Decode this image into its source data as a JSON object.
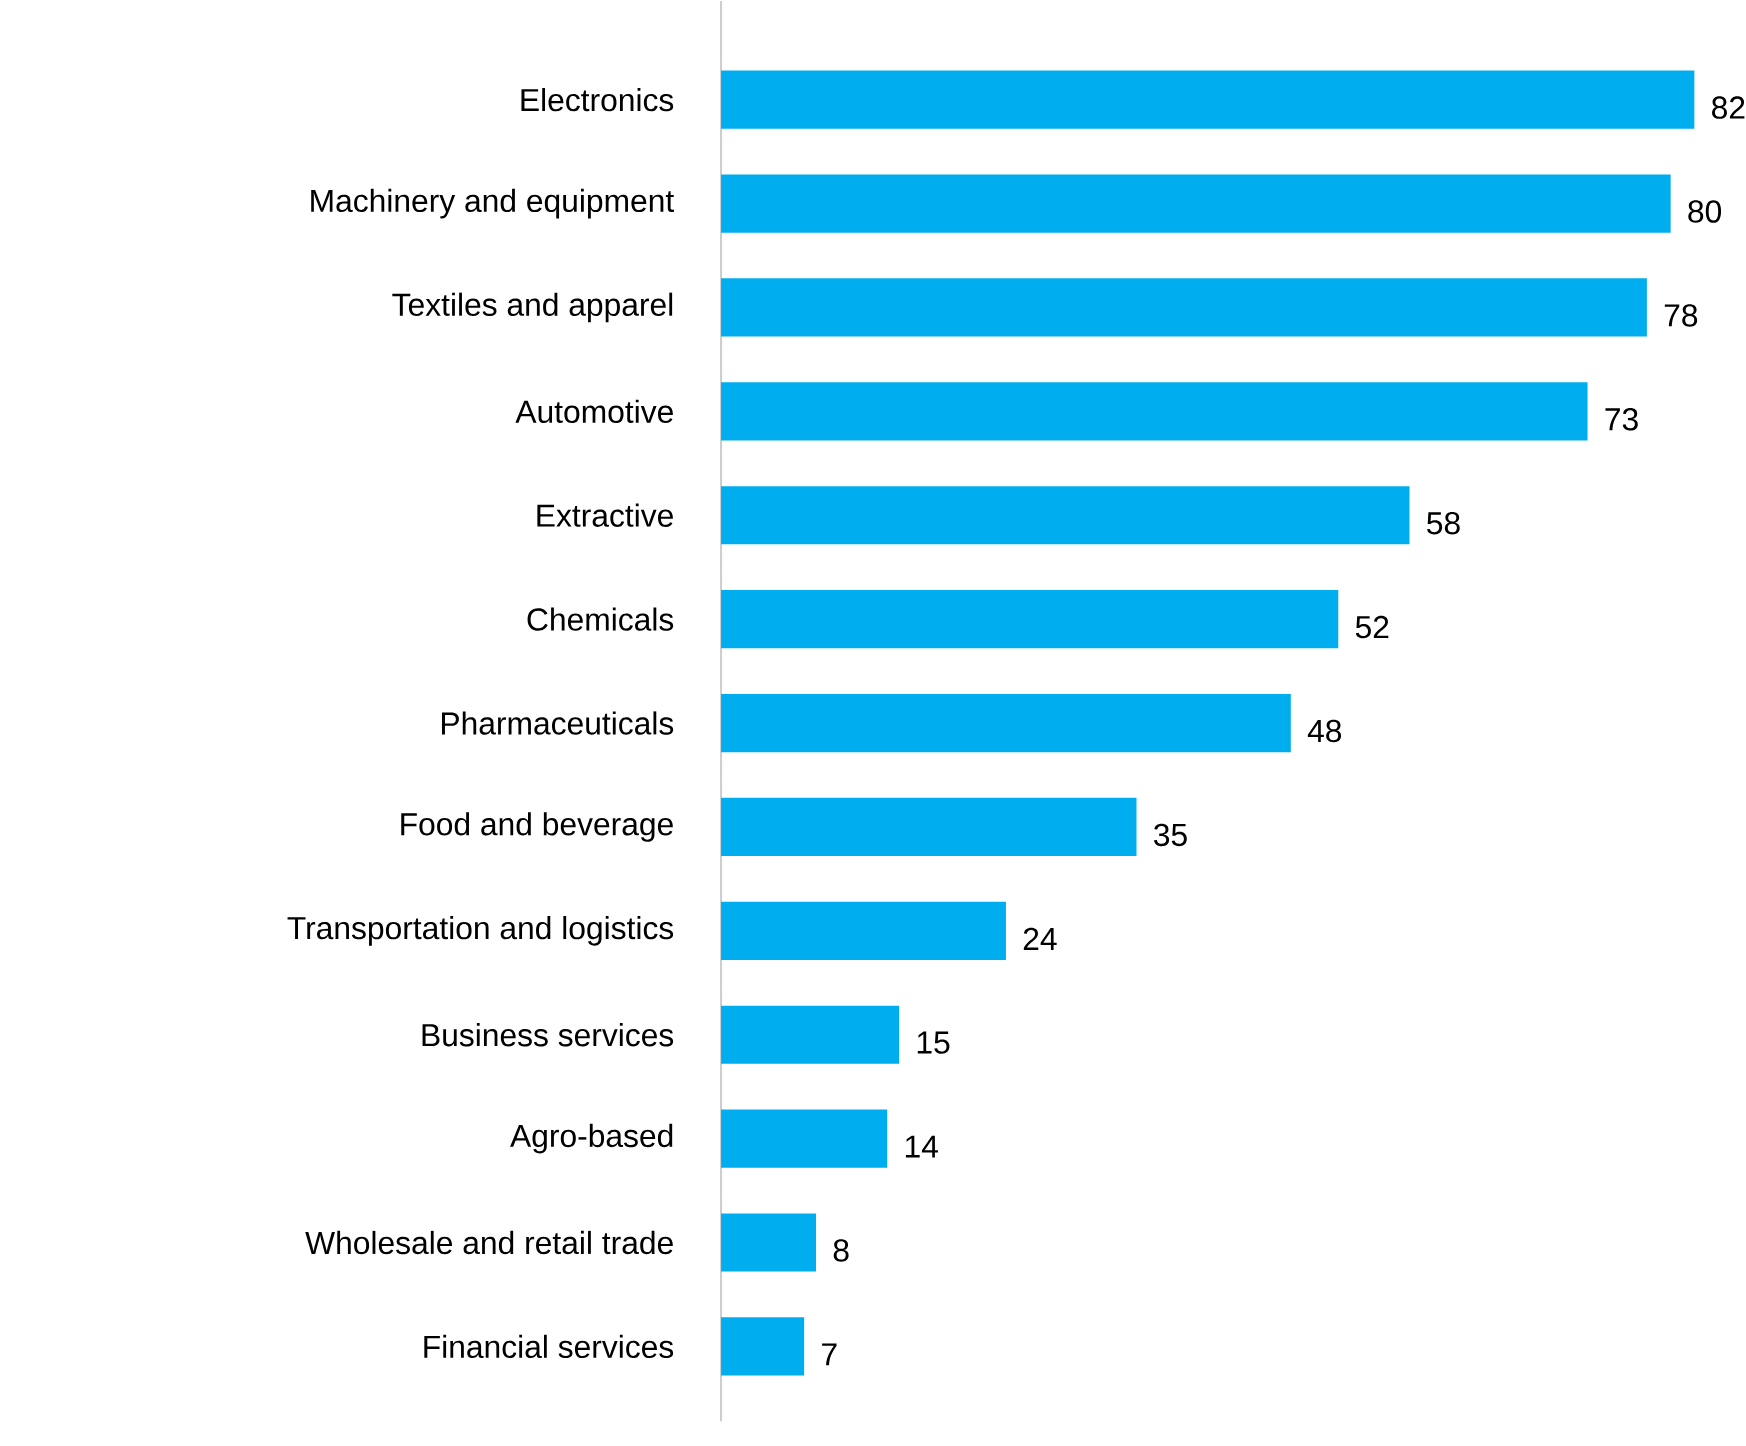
{
  "chart_data": {
    "type": "bar",
    "orientation": "horizontal",
    "categories": [
      "Electronics",
      "Machinery and equipment",
      "Textiles and apparel",
      "Automotive",
      "Extractive",
      "Chemicals",
      "Pharmaceuticals",
      "Food and beverage",
      "Transportation and logistics",
      "Business services",
      "Agro-based",
      "Wholesale and retail trade",
      "Financial services"
    ],
    "values": [
      82,
      80,
      78,
      73,
      58,
      52,
      48,
      35,
      24,
      15,
      14,
      8,
      7
    ],
    "color": "#00aeef",
    "data_labels": true
  }
}
